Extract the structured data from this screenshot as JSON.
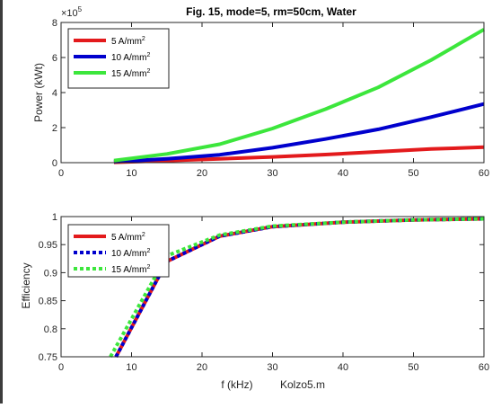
{
  "chart_data": [
    {
      "type": "line",
      "title": "Fig. 15, mode=5, rm=50cm, Water",
      "xlabel": "",
      "ylabel": "Power (kWt)",
      "exponent_label": "×10",
      "exponent_value": "5",
      "xlim": [
        0,
        60
      ],
      "ylim": [
        0,
        8
      ],
      "x_ticks": [
        "0",
        "10",
        "20",
        "30",
        "40",
        "50",
        "60"
      ],
      "y_ticks": [
        "0",
        "2",
        "4",
        "6",
        "8"
      ],
      "legend_position": "top-left",
      "series": [
        {
          "name": "5 A/mm",
          "sup": "2",
          "color": "#e31a1c",
          "style": "solid",
          "x": [
            7.5,
            15,
            22.5,
            30,
            37.5,
            45,
            52.5,
            60
          ],
          "y": [
            0.02,
            0.12,
            0.22,
            0.33,
            0.46,
            0.62,
            0.78,
            0.88
          ]
        },
        {
          "name": "10 A/mm",
          "sup": "2",
          "color": "#0000cd",
          "style": "solid",
          "x": [
            7.5,
            15,
            22.5,
            30,
            37.5,
            45,
            52.5,
            60
          ],
          "y": [
            0.05,
            0.22,
            0.45,
            0.85,
            1.35,
            1.9,
            2.6,
            3.35
          ]
        },
        {
          "name": "15 A/mm",
          "sup": "2",
          "color": "#3ce63c",
          "style": "solid",
          "x": [
            7.5,
            15,
            22.5,
            30,
            37.5,
            45,
            52.5,
            60
          ],
          "y": [
            0.12,
            0.5,
            1.05,
            1.95,
            3.05,
            4.3,
            5.85,
            7.6
          ]
        }
      ]
    },
    {
      "type": "line",
      "title": "",
      "xlabel": "f (kHz)",
      "ylabel": "Efficiency",
      "xlim": [
        0,
        60
      ],
      "ylim": [
        0.75,
        1.0
      ],
      "x_ticks": [
        "0",
        "10",
        "20",
        "30",
        "40",
        "50",
        "60"
      ],
      "y_ticks": [
        "0.75",
        "0.8",
        "0.85",
        "0.9",
        "0.95",
        "1"
      ],
      "legend_position": "top-left",
      "series": [
        {
          "name": "5 A/mm",
          "sup": "2",
          "color": "#e31a1c",
          "style": "solid",
          "x": [
            7.8,
            15,
            22.5,
            30,
            40,
            50,
            60
          ],
          "y": [
            0.75,
            0.92,
            0.965,
            0.982,
            0.99,
            0.994,
            0.996
          ]
        },
        {
          "name": "10 A/mm",
          "sup": "2",
          "color": "#0000cd",
          "style": "dotted",
          "x": [
            7.8,
            15,
            22.5,
            30,
            40,
            50,
            60
          ],
          "y": [
            0.75,
            0.92,
            0.965,
            0.982,
            0.99,
            0.994,
            0.996
          ]
        },
        {
          "name": "15 A/mm",
          "sup": "2",
          "color": "#3ce63c",
          "style": "dotted",
          "x": [
            7.0,
            15,
            22.5,
            30,
            40,
            50,
            60
          ],
          "y": [
            0.75,
            0.93,
            0.967,
            0.983,
            0.99,
            0.994,
            0.996
          ]
        }
      ]
    }
  ],
  "footer": {
    "file_label": "Kolzo5.m"
  }
}
